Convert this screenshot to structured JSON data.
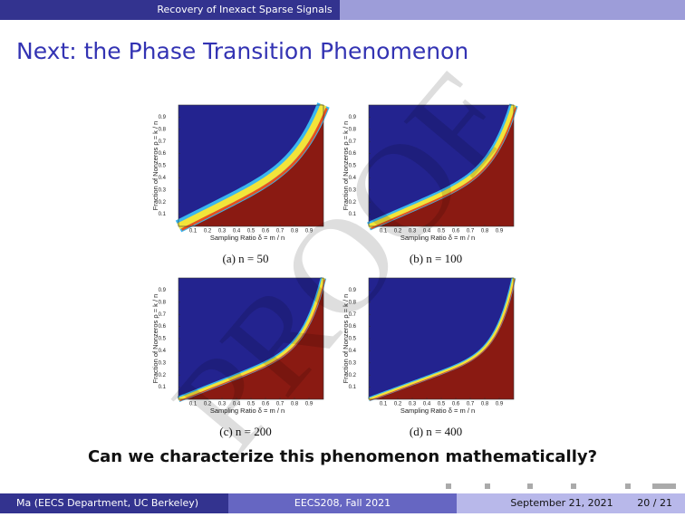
{
  "header": {
    "section": "Recovery of Inexact Sparse Signals"
  },
  "slide": {
    "title": "Next: the Phase Transition Phenomenon",
    "axes": {
      "x_label": "Sampling Ratio δ = m / n",
      "y_label": "Fraction of Nonzeros ρ = k / n",
      "xticks": [
        0.1,
        0.2,
        0.3,
        0.4,
        0.5,
        0.6,
        0.7,
        0.8,
        0.9
      ],
      "yticks": [
        0.1,
        0.2,
        0.3,
        0.4,
        0.5,
        0.6,
        0.7,
        0.8,
        0.9
      ]
    },
    "figures": [
      {
        "caption": "(a) n = 50"
      },
      {
        "caption": "(b) n = 100"
      },
      {
        "caption": "(c) n = 200"
      },
      {
        "caption": "(d) n = 400"
      }
    ],
    "question": "Can we characterize this phenomenon mathematically?"
  },
  "watermark": "PROOF",
  "footer": {
    "author": "Ma  (EECS Department, UC Berkeley)",
    "course": "EECS208, Fall 2021",
    "date": "September 21, 2021",
    "page": "20 / 21"
  }
}
